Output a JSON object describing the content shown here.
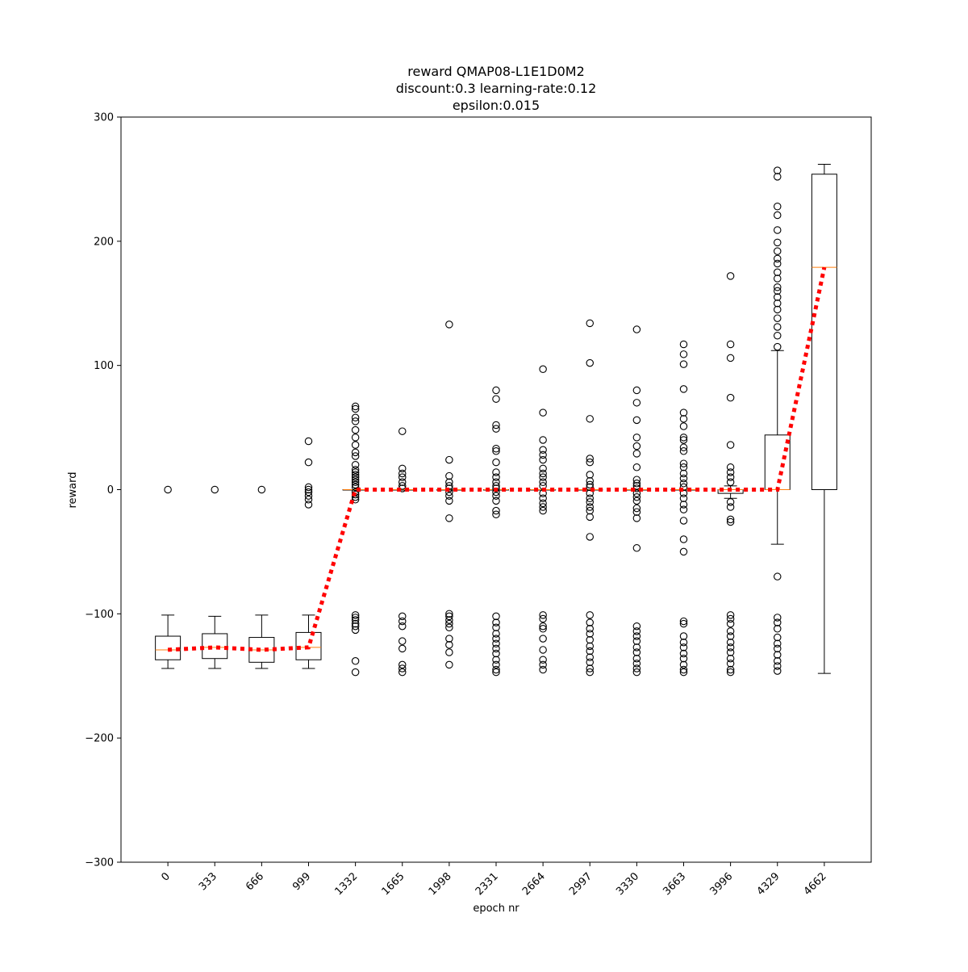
{
  "chart_data": {
    "type": "box",
    "title": [
      "reward QMAP08-L1E1D0M2",
      "discount:0.3 learning-rate:0.12",
      "epsilon:0.015"
    ],
    "xlabel": "epoch nr",
    "ylabel": "reward",
    "ylim": [
      -300,
      300
    ],
    "yticks": [
      -300,
      -200,
      -100,
      0,
      100,
      200,
      300
    ],
    "yticklabels": [
      "−300",
      "−200",
      "−100",
      "0",
      "100",
      "200",
      "300"
    ],
    "grid": false,
    "colors": {
      "box": "#000000",
      "median": "#ff7f0e",
      "trend": "#ff0000"
    },
    "categories": [
      "0",
      "333",
      "666",
      "999",
      "1332",
      "1665",
      "1998",
      "2331",
      "2664",
      "2997",
      "3330",
      "3663",
      "3996",
      "4329",
      "4662"
    ],
    "boxes": [
      {
        "q1": -137,
        "median": -129,
        "q3": -118,
        "whislo": -144,
        "whishi": -101,
        "fliers": [
          0
        ]
      },
      {
        "q1": -136,
        "median": -127,
        "q3": -116,
        "whislo": -144,
        "whishi": -102,
        "fliers": [
          0
        ]
      },
      {
        "q1": -139,
        "median": -129,
        "q3": -119,
        "whislo": -144,
        "whishi": -101,
        "fliers": [
          0
        ]
      },
      {
        "q1": -137,
        "median": -127,
        "q3": -115,
        "whislo": -144,
        "whishi": -101,
        "fliers": [
          39,
          22,
          2,
          0,
          -2,
          -5,
          -8,
          -12
        ]
      },
      {
        "q1": 0,
        "median": 0,
        "q3": 0,
        "whislo": 0,
        "whishi": 0,
        "fliers": [
          67,
          65,
          58,
          55,
          48,
          42,
          36,
          30,
          27,
          20,
          16,
          14,
          12,
          10,
          8,
          6,
          4,
          2,
          -2,
          -4,
          -6,
          -8,
          -101,
          -103,
          -105,
          -108,
          -110,
          -113,
          -138,
          -147
        ]
      },
      {
        "q1": 0,
        "median": 0,
        "q3": 0,
        "whislo": 0,
        "whishi": 0,
        "fliers": [
          47,
          17,
          13,
          10,
          6,
          3,
          1,
          -102,
          -106,
          -110,
          -122,
          -128,
          -141,
          -144,
          -147
        ]
      },
      {
        "q1": 0,
        "median": 0,
        "q3": 0,
        "whislo": 0,
        "whishi": 0,
        "fliers": [
          133,
          24,
          11,
          6,
          3,
          1,
          -2,
          -5,
          -9,
          -23,
          -100,
          -102,
          -105,
          -108,
          -111,
          -120,
          -125,
          -131,
          -141
        ]
      },
      {
        "q1": 0,
        "median": 0,
        "q3": 0,
        "whislo": 0,
        "whishi": 0,
        "fliers": [
          80,
          73,
          52,
          49,
          33,
          31,
          22,
          14,
          10,
          6,
          3,
          1,
          -2,
          -5,
          -9,
          -17,
          -20,
          -102,
          -107,
          -111,
          -116,
          -120,
          -124,
          -128,
          -132,
          -137,
          -141,
          -145,
          -147
        ]
      },
      {
        "q1": 0,
        "median": 0,
        "q3": 0,
        "whislo": 0,
        "whishi": 0,
        "fliers": [
          97,
          62,
          40,
          32,
          28,
          24,
          17,
          13,
          10,
          6,
          3,
          -3,
          -7,
          -11,
          -14,
          -17,
          -101,
          -104,
          -110,
          -112,
          -120,
          -129,
          -137,
          -141,
          -145
        ]
      },
      {
        "q1": 0,
        "median": 0,
        "q3": 0,
        "whislo": 0,
        "whishi": 0,
        "fliers": [
          134,
          102,
          57,
          25,
          22,
          12,
          7,
          4,
          2,
          -3,
          -7,
          -10,
          -14,
          -17,
          -22,
          -38,
          -101,
          -107,
          -112,
          -116,
          -121,
          -126,
          -130,
          -135,
          -139,
          -144,
          -147
        ]
      },
      {
        "q1": 0,
        "median": 0,
        "q3": 0,
        "whislo": 0,
        "whishi": 0,
        "fliers": [
          129,
          80,
          70,
          56,
          42,
          35,
          29,
          18,
          8,
          5,
          3,
          1,
          -3,
          -6,
          -9,
          -15,
          -18,
          -23,
          -47,
          -110,
          -114,
          -118,
          -122,
          -127,
          -131,
          -136,
          -140,
          -144,
          -147
        ]
      },
      {
        "q1": 0,
        "median": 0,
        "q3": 0,
        "whislo": 0,
        "whishi": 0,
        "fliers": [
          117,
          109,
          101,
          81,
          62,
          57,
          51,
          42,
          40,
          34,
          31,
          21,
          18,
          13,
          9,
          5,
          2,
          -3,
          -7,
          -12,
          -16,
          -25,
          -40,
          -50,
          -106,
          -108,
          -118,
          -123,
          -127,
          -132,
          -136,
          -141,
          -145,
          -147
        ]
      },
      {
        "q1": -3,
        "median": 0,
        "q3": 0,
        "whislo": -7,
        "whishi": 3,
        "fliers": [
          172,
          117,
          106,
          74,
          36,
          18,
          14,
          10,
          6,
          -10,
          -14,
          -24,
          -26,
          -101,
          -104,
          -108,
          -114,
          -118,
          -123,
          -127,
          -131,
          -136,
          -140,
          -145,
          -147
        ]
      },
      {
        "q1": 0,
        "median": 0,
        "q3": 44,
        "whislo": -44,
        "whishi": 112,
        "fliers": [
          257,
          252,
          228,
          221,
          209,
          199,
          192,
          186,
          182,
          175,
          170,
          163,
          160,
          155,
          150,
          145,
          138,
          131,
          124,
          115,
          -70,
          -103,
          -107,
          -112,
          -119,
          -124,
          -128,
          -133,
          -138,
          -142,
          -146
        ]
      },
      {
        "q1": 0,
        "median": 179,
        "q3": 254,
        "whislo": -148,
        "whishi": 262,
        "fliers": []
      }
    ],
    "trend": [
      -129,
      -127,
      -129,
      -127,
      0,
      0,
      0,
      0,
      0,
      0,
      0,
      0,
      0,
      0,
      179
    ]
  }
}
